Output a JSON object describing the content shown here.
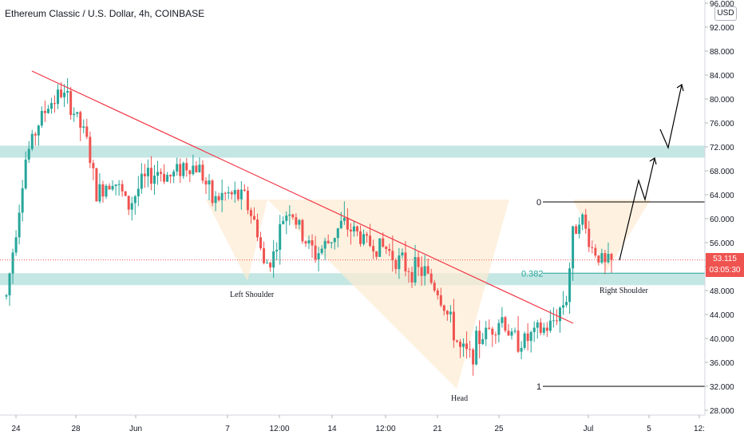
{
  "header": {
    "title": "Ethereum Classic / U.S. Dollar, 4h, COINBASE"
  },
  "currency_button": {
    "label": "USD"
  },
  "last_price": {
    "value": "53.115",
    "countdown": "03:05:30",
    "color": "#ef5350"
  },
  "colors": {
    "up": "#26a69a",
    "down": "#ef5350",
    "trendline": "#f23645",
    "zone": "#b2dfdb",
    "pattern_fill": "#fdebd3",
    "fib": "#000000",
    "fib_382": "#26a69a"
  },
  "annotations": {
    "left_shoulder": "Left Shoulder",
    "head": "Head",
    "right_shoulder": "Right Shoulder",
    "fib_0": "0",
    "fib_0382": "0.382",
    "fib_1": "1"
  },
  "chart_data": {
    "type": "candlestick",
    "title": "Ethereum Classic / U.S. Dollar, 4h, COINBASE",
    "price_axis": {
      "ticks": [
        "96.000",
        "92.000",
        "88.000",
        "84.000",
        "80.000",
        "76.000",
        "72.000",
        "68.000",
        "64.000",
        "60.000",
        "56.000",
        "52.000",
        "48.000",
        "44.000",
        "40.000",
        "36.000",
        "32.000",
        "28.000"
      ],
      "range": [
        26.6,
        98.3
      ]
    },
    "time_axis": {
      "ticks": [
        "24",
        "28",
        "Jun",
        "7",
        "12:00",
        "14",
        "12:00",
        "21",
        "25",
        "Jul",
        "5",
        "12:"
      ]
    },
    "key_levels": {
      "fib_0": 62.8,
      "fib_0382": 50.9,
      "fib_1": 32.0,
      "resistance_zone": [
        70.2,
        72.2
      ],
      "support_zone": [
        48.9,
        50.9
      ]
    },
    "anchors": [
      {
        "t": 0,
        "p": 47
      },
      {
        "t": 6,
        "p": 70
      },
      {
        "t": 10,
        "p": 76
      },
      {
        "t": 13,
        "p": 79
      },
      {
        "t": 17,
        "p": 81
      },
      {
        "t": 20,
        "p": 79
      },
      {
        "t": 25,
        "p": 73
      },
      {
        "t": 28,
        "p": 64
      },
      {
        "t": 33,
        "p": 67
      },
      {
        "t": 38,
        "p": 62
      },
      {
        "t": 42,
        "p": 66
      },
      {
        "t": 47,
        "p": 68
      },
      {
        "t": 51,
        "p": 67
      },
      {
        "t": 55,
        "p": 69
      },
      {
        "t": 60,
        "p": 68.5
      },
      {
        "t": 64,
        "p": 63
      },
      {
        "t": 68,
        "p": 64
      },
      {
        "t": 74,
        "p": 63.5
      },
      {
        "t": 78,
        "p": 58
      },
      {
        "t": 80,
        "p": 52
      },
      {
        "t": 83,
        "p": 54
      },
      {
        "t": 86,
        "p": 60
      },
      {
        "t": 88,
        "p": 62
      },
      {
        "t": 92,
        "p": 57
      },
      {
        "t": 96,
        "p": 54
      },
      {
        "t": 100,
        "p": 56
      },
      {
        "t": 104,
        "p": 59
      },
      {
        "t": 108,
        "p": 58
      },
      {
        "t": 112,
        "p": 56
      },
      {
        "t": 118,
        "p": 55
      },
      {
        "t": 124,
        "p": 52
      },
      {
        "t": 130,
        "p": 51
      },
      {
        "t": 134,
        "p": 48
      },
      {
        "t": 137,
        "p": 44
      },
      {
        "t": 141,
        "p": 38
      },
      {
        "t": 144,
        "p": 37
      },
      {
        "t": 147,
        "p": 40
      },
      {
        "t": 151,
        "p": 42
      },
      {
        "t": 154,
        "p": 43.5
      },
      {
        "t": 157,
        "p": 40
      },
      {
        "t": 161,
        "p": 39.5
      },
      {
        "t": 165,
        "p": 41
      },
      {
        "t": 169,
        "p": 42
      },
      {
        "t": 172,
        "p": 45
      },
      {
        "t": 174,
        "p": 47
      },
      {
        "t": 176,
        "p": 57
      },
      {
        "t": 178,
        "p": 61
      },
      {
        "t": 180,
        "p": 58
      },
      {
        "t": 182,
        "p": 55
      },
      {
        "t": 184,
        "p": 54
      },
      {
        "t": 186,
        "p": 52
      },
      {
        "t": 188,
        "p": 53.1
      }
    ]
  }
}
